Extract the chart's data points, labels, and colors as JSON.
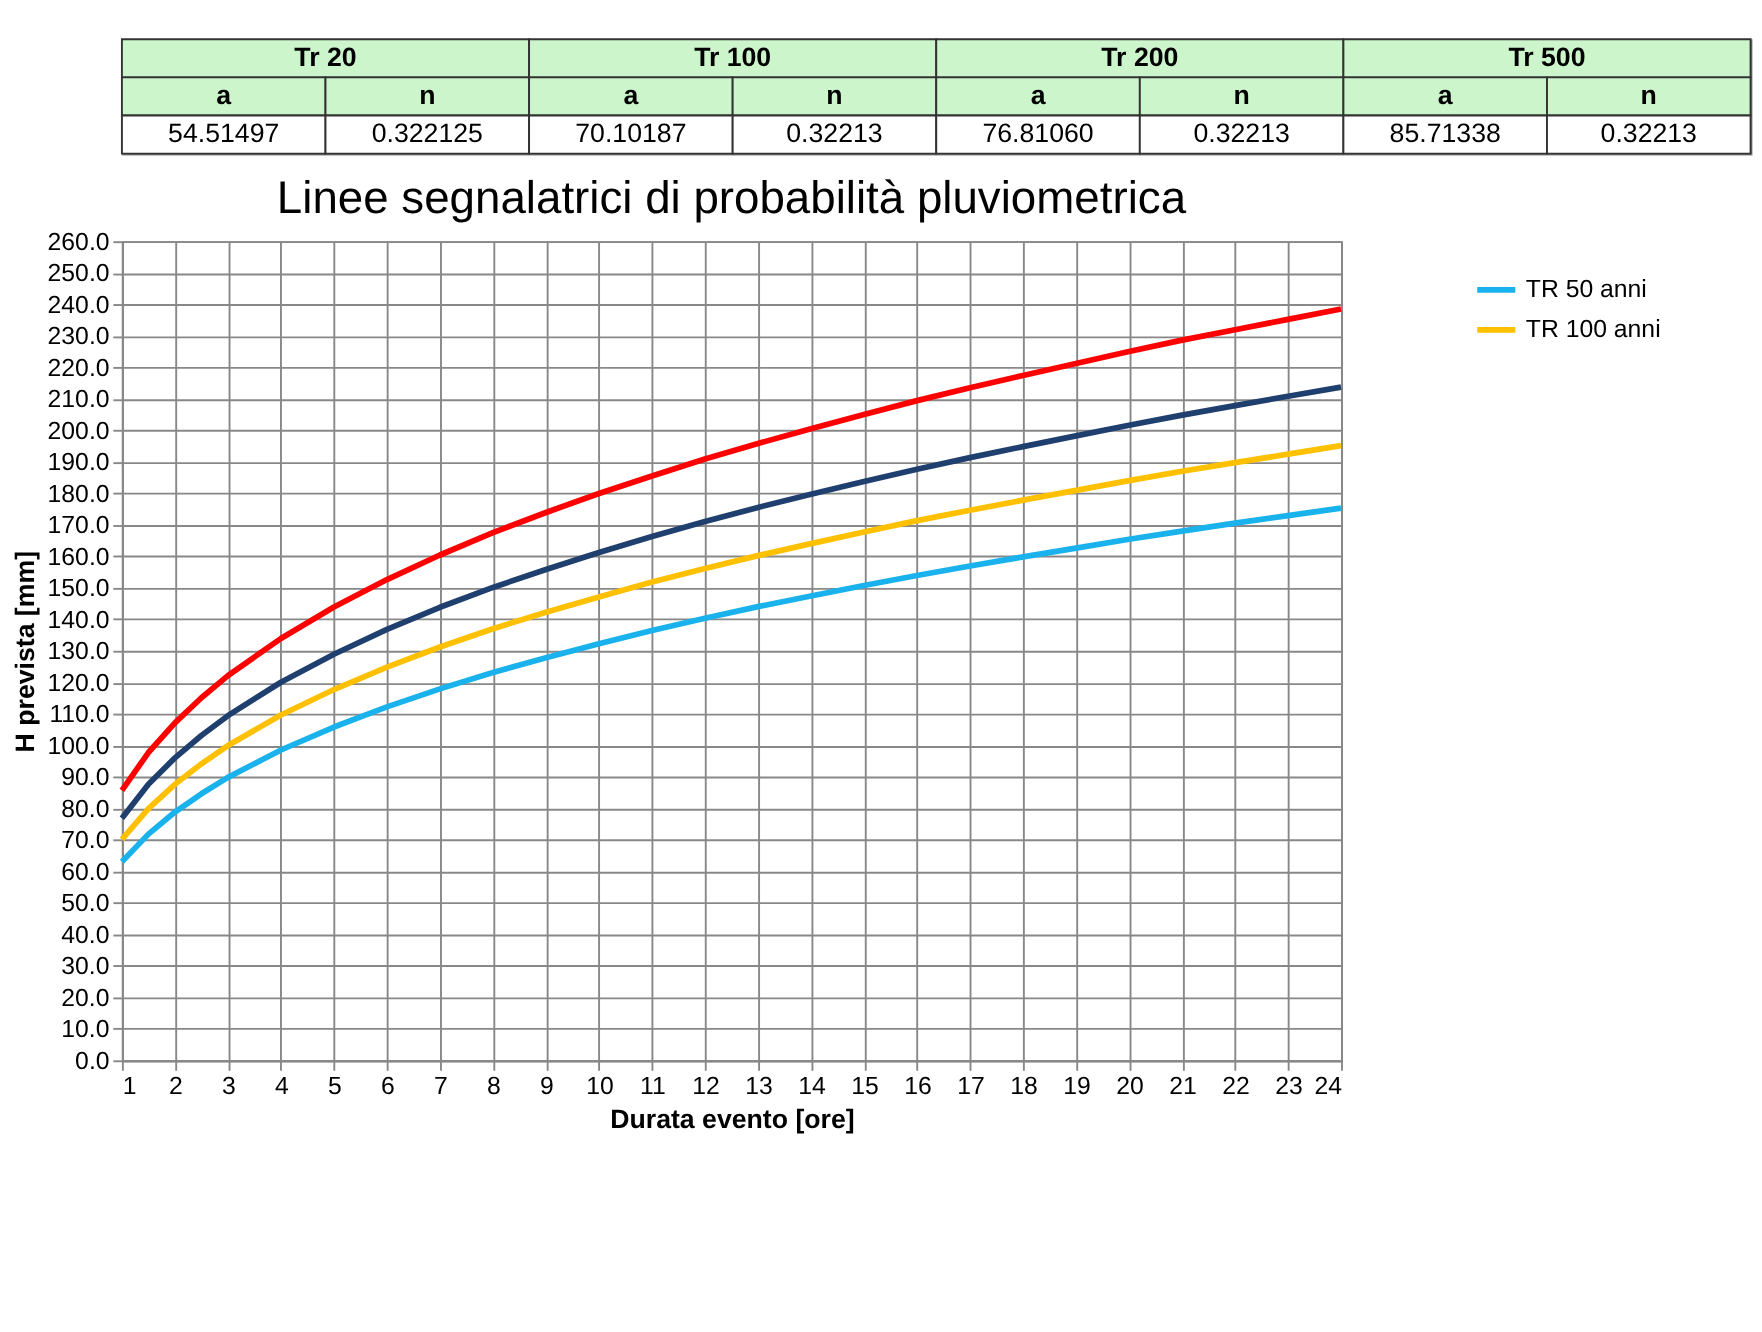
{
  "chart_data": {
    "type": "line",
    "title": "Linee segnalatrici di probabilità pluviometrica",
    "xlabel": "Durata evento [ore]",
    "ylabel": "H prevista [mm]",
    "annotations": [
      "Tr 20",
      "Tr 100",
      "Tr 200",
      "Tr 500",
      "a",
      "n",
      "a",
      "n",
      "a",
      "n",
      "a",
      "n",
      "54.51497",
      "0.322125",
      "70.10187",
      "0.32213",
      "76.81060",
      "0.32213",
      "85.71338",
      "0.32213"
    ],
    "x": [
      1,
      1.5,
      2,
      2.5,
      3,
      4,
      5,
      6,
      7,
      8,
      9,
      10,
      11,
      12,
      13,
      14,
      15,
      16,
      17,
      18,
      19,
      20,
      21,
      22,
      23,
      24
    ],
    "series": [
      {
        "name": "TR 50 anni",
        "color": "#1ab2ec",
        "values": [
          63,
          71.8,
          78.8,
          84.6,
          89.8,
          98.5,
          105.8,
          112.2,
          117.9,
          123.1,
          127.8,
          132.2,
          136.4,
          140.3,
          144.0,
          147.4,
          150.7,
          153.9,
          156.9,
          159.8,
          162.6,
          165.4,
          168.0,
          170.5,
          172.9,
          175.3
        ]
      },
      {
        "name": "TR 100 anni",
        "color": "#ffc000",
        "values": [
          70.1,
          79.9,
          87.6,
          94.1,
          99.9,
          109.6,
          117.7,
          124.8,
          131.2,
          137.0,
          142.2,
          147.1,
          151.8,
          156.1,
          160.2,
          164.0,
          167.7,
          171.3,
          174.6,
          177.8,
          180.9,
          184.0,
          187.0,
          189.7,
          192.4,
          195.1
        ]
      },
      {
        "color": "#1f3f6e",
        "values": [
          76.8,
          87.6,
          96.0,
          103.1,
          109.4,
          120.0,
          128.9,
          136.8,
          143.8,
          150.1,
          155.8,
          161.2,
          166.3,
          171.0,
          175.5,
          179.7,
          183.7,
          187.6,
          191.3,
          194.8,
          198.2,
          201.6,
          204.8,
          207.8,
          210.8,
          213.7
        ]
      },
      {
        "color": "#ff0000",
        "values": [
          85.7,
          97.7,
          107.1,
          115.1,
          122.1,
          133.9,
          143.9,
          152.6,
          160.4,
          167.5,
          173.9,
          179.9,
          185.5,
          190.9,
          195.8,
          200.5,
          205.0,
          209.4,
          213.5,
          217.4,
          221.2,
          225.0,
          228.6,
          231.9,
          235.2,
          238.5
        ]
      }
    ],
    "xlim": [
      1,
      24
    ],
    "xticks": [
      1,
      2,
      3,
      4,
      5,
      6,
      7,
      8,
      9,
      10,
      11,
      12,
      13,
      14,
      15,
      16,
      17,
      18,
      19,
      20,
      21,
      22,
      23,
      24
    ],
    "ylim": [
      0,
      260
    ],
    "yticks": [
      {
        "value": 0,
        "label": "0.0"
      },
      {
        "value": 10,
        "label": "10.0"
      },
      {
        "value": 20,
        "label": "20.0"
      },
      {
        "value": 30,
        "label": "30.0"
      },
      {
        "value": 40,
        "label": "40.0"
      },
      {
        "value": 50,
        "label": "50.0"
      },
      {
        "value": 60,
        "label": "60.0"
      },
      {
        "value": 70,
        "label": "70.0"
      },
      {
        "value": 80,
        "label": "80.0"
      },
      {
        "value": 90,
        "label": "90.0"
      },
      {
        "value": 100,
        "label": "100.0"
      },
      {
        "value": 110,
        "label": "110.0"
      },
      {
        "value": 120,
        "label": "120.0"
      },
      {
        "value": 130,
        "label": "130.0"
      },
      {
        "value": 140,
        "label": "140.0"
      },
      {
        "value": 150,
        "label": "150.0"
      },
      {
        "value": 160,
        "label": "160.0"
      },
      {
        "value": 170,
        "label": "170.0"
      },
      {
        "value": 180,
        "label": "180.0"
      },
      {
        "value": 190,
        "label": "190.0"
      },
      {
        "value": 200,
        "label": "200.0"
      },
      {
        "value": 210,
        "label": "210.0"
      },
      {
        "value": 220,
        "label": "220.0"
      },
      {
        "value": 230,
        "label": "230.0"
      },
      {
        "value": 240,
        "label": "240.0"
      },
      {
        "value": 250,
        "label": "250.0"
      },
      {
        "value": 260,
        "label": "260.0"
      }
    ],
    "grid": true,
    "legend": "top right",
    "marker": "none",
    "line_style": "solid"
  }
}
